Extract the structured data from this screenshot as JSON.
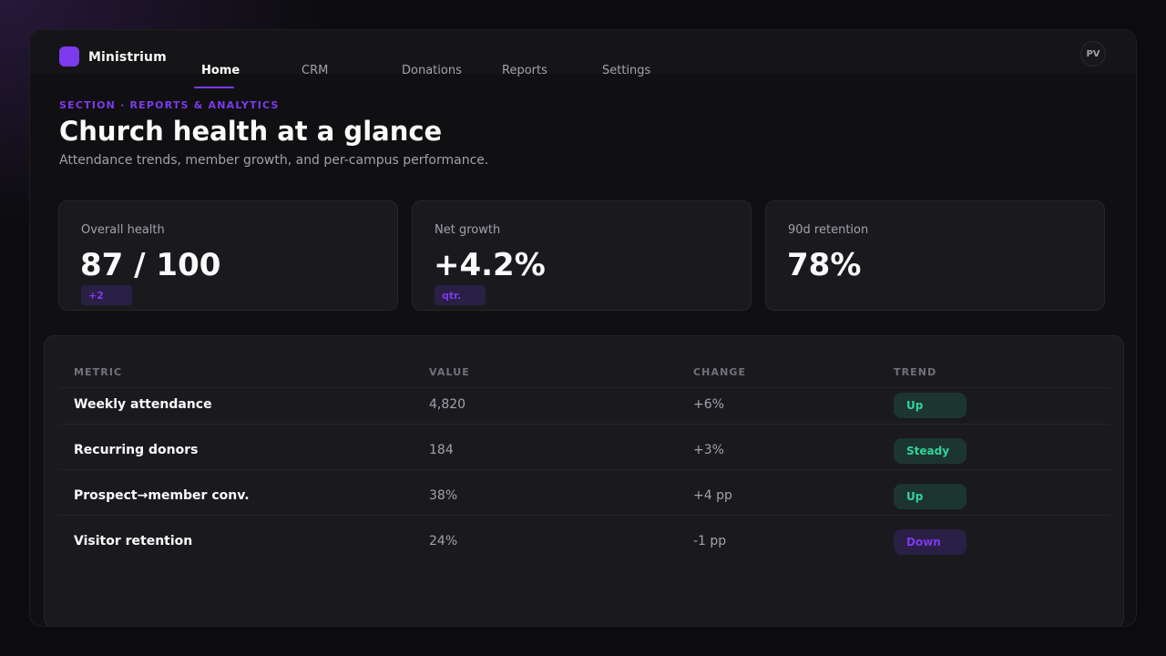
{
  "app": {
    "name": "Ministrium"
  },
  "nav": {
    "items": [
      {
        "label": "Home",
        "active": true
      },
      {
        "label": "CRM",
        "active": false
      },
      {
        "label": "Donations",
        "active": false
      },
      {
        "label": "Reports",
        "active": false
      },
      {
        "label": "Settings",
        "active": false
      }
    ]
  },
  "user": {
    "initials": "PV"
  },
  "header": {
    "eyebrow": "SECTION · REPORTS & ANALYTICS",
    "title": "Church health at a glance",
    "subtitle": "Attendance trends, member growth, and per-campus performance."
  },
  "cards": [
    {
      "label": "Overall health",
      "value": "87 / 100",
      "chip": "+2"
    },
    {
      "label": "Net growth",
      "value": "+4.2%",
      "chip": "qtr."
    },
    {
      "label": "90d retention",
      "value": "78%"
    }
  ],
  "table": {
    "columns": [
      "METRIC",
      "VALUE",
      "CHANGE",
      "TREND"
    ],
    "rows": [
      {
        "metric": "Weekly attendance",
        "value": "4,820",
        "change": "+6%",
        "trend": "Up"
      },
      {
        "metric": "Recurring donors",
        "value": "184",
        "change": "+3%",
        "trend": "Steady"
      },
      {
        "metric": "Prospect→member conv.",
        "value": "38%",
        "change": "+4 pp",
        "trend": "Up"
      },
      {
        "metric": "Visitor retention",
        "value": "24%",
        "change": "-1 pp",
        "trend": "Down"
      }
    ]
  },
  "colors": {
    "accent": "#7c3aed",
    "positive": "#34d399",
    "background": "#101012",
    "card": "#1a1a1e"
  }
}
